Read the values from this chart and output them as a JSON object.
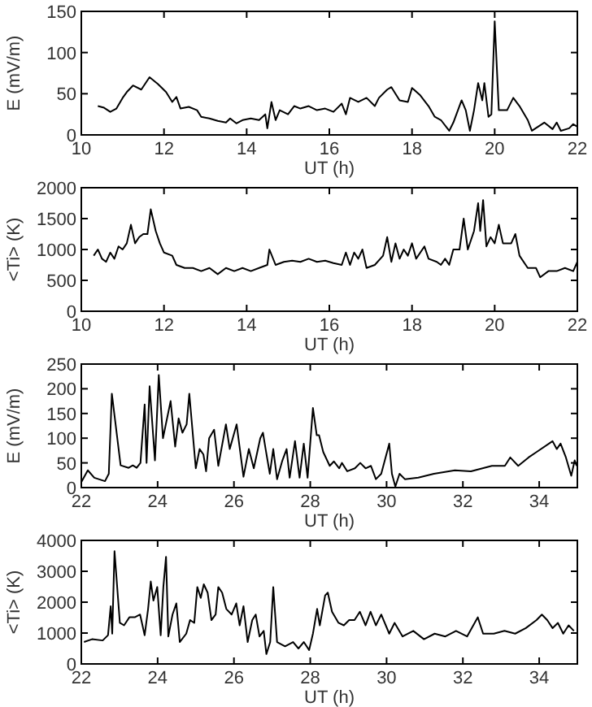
{
  "chart_data": [
    {
      "type": "line",
      "xlabel": "UT (h)",
      "ylabel": "E (mV/m)",
      "xlim": [
        10,
        22
      ],
      "ylim": [
        0,
        150
      ],
      "xticks": [
        10,
        12,
        14,
        16,
        18,
        20,
        22
      ],
      "yticks": [
        0,
        50,
        100,
        150
      ],
      "color": "#000000",
      "x": [
        10.4,
        10.55,
        10.7,
        10.85,
        11.0,
        11.1,
        11.25,
        11.45,
        11.65,
        11.85,
        12.05,
        12.2,
        12.3,
        12.4,
        12.6,
        12.8,
        12.9,
        13.1,
        13.3,
        13.5,
        13.6,
        13.75,
        13.9,
        14.1,
        14.3,
        14.45,
        14.5,
        14.6,
        14.7,
        14.8,
        15.0,
        15.15,
        15.3,
        15.5,
        15.7,
        15.9,
        16.1,
        16.3,
        16.4,
        16.5,
        16.7,
        16.9,
        17.1,
        17.2,
        17.4,
        17.5,
        17.7,
        17.9,
        18.0,
        18.2,
        18.4,
        18.55,
        18.7,
        18.9,
        19.0,
        19.2,
        19.3,
        19.4,
        19.5,
        19.6,
        19.7,
        19.75,
        19.85,
        19.92,
        20.0,
        20.1,
        20.3,
        20.45,
        20.6,
        20.8,
        20.9,
        21.2,
        21.4,
        21.5,
        21.6,
        21.8,
        21.9,
        22.0
      ],
      "values": [
        35,
        33,
        28,
        32,
        45,
        52,
        60,
        55,
        70,
        62,
        52,
        40,
        46,
        32,
        34,
        30,
        22,
        20,
        17,
        15,
        20,
        14,
        18,
        20,
        18,
        25,
        8,
        40,
        18,
        30,
        25,
        35,
        32,
        35,
        30,
        32,
        28,
        38,
        25,
        45,
        40,
        45,
        35,
        45,
        55,
        58,
        42,
        40,
        57,
        48,
        35,
        22,
        18,
        5,
        15,
        42,
        30,
        5,
        30,
        63,
        42,
        63,
        22,
        25,
        138,
        30,
        30,
        45,
        35,
        18,
        5,
        15,
        7,
        15,
        5,
        8,
        13,
        10
      ]
    },
    {
      "type": "line",
      "xlabel": "UT (h)",
      "ylabel": "<Ti> (K)",
      "xlim": [
        10,
        22
      ],
      "ylim": [
        0,
        2000
      ],
      "xticks": [
        10,
        12,
        14,
        16,
        18,
        20,
        22
      ],
      "yticks": [
        0,
        500,
        1000,
        1500,
        2000
      ],
      "color": "#000000",
      "x": [
        10.3,
        10.4,
        10.5,
        10.6,
        10.7,
        10.8,
        10.9,
        11.0,
        11.1,
        11.2,
        11.3,
        11.4,
        11.5,
        11.6,
        11.68,
        11.8,
        11.9,
        12.0,
        12.2,
        12.3,
        12.5,
        12.7,
        12.9,
        13.1,
        13.3,
        13.5,
        13.7,
        13.9,
        14.1,
        14.3,
        14.5,
        14.55,
        14.7,
        14.9,
        15.1,
        15.3,
        15.5,
        15.7,
        15.9,
        16.1,
        16.3,
        16.4,
        16.5,
        16.6,
        16.7,
        16.8,
        16.9,
        17.1,
        17.3,
        17.4,
        17.5,
        17.6,
        17.7,
        17.8,
        17.9,
        18.0,
        18.1,
        18.3,
        18.4,
        18.6,
        18.7,
        18.8,
        18.9,
        19.0,
        19.15,
        19.25,
        19.35,
        19.5,
        19.6,
        19.65,
        19.72,
        19.8,
        19.9,
        20.0,
        20.1,
        20.2,
        20.4,
        20.5,
        20.6,
        20.8,
        21.0,
        21.1,
        21.3,
        21.5,
        21.7,
        21.9,
        22.0
      ],
      "values": [
        900,
        1000,
        850,
        800,
        950,
        850,
        1050,
        1000,
        1100,
        1400,
        1100,
        1200,
        1250,
        1250,
        1650,
        1300,
        1100,
        950,
        900,
        750,
        700,
        700,
        650,
        700,
        600,
        700,
        650,
        700,
        650,
        700,
        750,
        1000,
        750,
        800,
        820,
        800,
        850,
        800,
        820,
        780,
        750,
        950,
        750,
        950,
        850,
        1000,
        700,
        750,
        900,
        1200,
        800,
        1100,
        850,
        1000,
        900,
        1100,
        850,
        1050,
        850,
        800,
        750,
        850,
        750,
        1000,
        1000,
        1500,
        1000,
        1300,
        1750,
        1300,
        1800,
        1050,
        1200,
        1100,
        1400,
        1100,
        1100,
        1250,
        900,
        700,
        700,
        550,
        650,
        650,
        700,
        650,
        800
      ]
    },
    {
      "type": "line",
      "xlabel": "UT (h)",
      "ylabel": "E (mV/m)",
      "xlim": [
        22,
        35
      ],
      "ylim": [
        0,
        250
      ],
      "xticks": [
        22,
        24,
        26,
        28,
        30,
        32,
        34
      ],
      "yticks": [
        0,
        50,
        100,
        150,
        200,
        250
      ],
      "color": "#000000",
      "x": [
        22.0,
        22.17,
        22.34,
        22.62,
        22.72,
        22.8,
        23.03,
        23.24,
        23.35,
        23.45,
        23.55,
        23.66,
        23.71,
        23.79,
        23.93,
        24.03,
        24.14,
        24.34,
        24.46,
        24.55,
        24.65,
        24.76,
        24.83,
        25.0,
        25.1,
        25.2,
        25.27,
        25.35,
        25.48,
        25.59,
        25.79,
        25.89,
        26.07,
        26.25,
        26.39,
        26.52,
        26.69,
        26.76,
        26.83,
        26.94,
        27.03,
        27.13,
        27.27,
        27.38,
        27.46,
        27.6,
        27.72,
        27.83,
        27.93,
        28.07,
        28.17,
        28.23,
        28.34,
        28.51,
        28.62,
        28.76,
        28.83,
        28.97,
        29.17,
        29.31,
        29.45,
        29.59,
        29.72,
        29.86,
        30.07,
        30.14,
        30.23,
        30.34,
        30.48,
        30.83,
        31.24,
        31.79,
        32.21,
        32.76,
        33.1,
        33.24,
        33.45,
        33.72,
        33.93,
        34.35,
        34.46,
        34.56,
        34.7,
        34.84,
        34.93,
        34.98
      ],
      "values": [
        11,
        35,
        20,
        13,
        28,
        190,
        45,
        40,
        45,
        40,
        50,
        168,
        50,
        205,
        55,
        228,
        100,
        175,
        83,
        140,
        111,
        128,
        190,
        39,
        78,
        67,
        33,
        100,
        117,
        44,
        128,
        78,
        128,
        22,
        78,
        39,
        100,
        111,
        78,
        28,
        78,
        17,
        55,
        78,
        20,
        94,
        20,
        89,
        20,
        161,
        106,
        106,
        72,
        44,
        53,
        39,
        50,
        33,
        39,
        50,
        39,
        44,
        17,
        28,
        89,
        28,
        2,
        28,
        17,
        20,
        28,
        35,
        33,
        44,
        44,
        61,
        44,
        61,
        72,
        94,
        78,
        89,
        61,
        24,
        55,
        44
      ]
    },
    {
      "type": "line",
      "xlabel": "UT (h)",
      "ylabel": "<Ti> (K)",
      "xlim": [
        22,
        35
      ],
      "ylim": [
        0,
        4000
      ],
      "xticks": [
        22,
        24,
        26,
        28,
        30,
        32,
        34
      ],
      "yticks": [
        0,
        1000,
        2000,
        3000,
        4000
      ],
      "color": "#000000",
      "x": [
        22.07,
        22.28,
        22.56,
        22.7,
        22.77,
        22.81,
        22.87,
        23.01,
        23.12,
        23.26,
        23.4,
        23.54,
        23.66,
        23.75,
        23.82,
        23.89,
        23.99,
        24.08,
        24.15,
        24.22,
        24.28,
        24.39,
        24.49,
        24.58,
        24.75,
        24.85,
        24.96,
        25.04,
        25.13,
        25.21,
        25.31,
        25.41,
        25.52,
        25.59,
        25.69,
        25.8,
        25.94,
        26.06,
        26.15,
        26.25,
        26.36,
        26.48,
        26.57,
        26.67,
        26.78,
        26.85,
        26.95,
        27.03,
        27.13,
        27.34,
        27.55,
        27.69,
        27.83,
        27.97,
        28.07,
        28.18,
        28.25,
        28.39,
        28.46,
        28.57,
        28.74,
        28.88,
        29.02,
        29.16,
        29.3,
        29.45,
        29.58,
        29.72,
        29.86,
        30.07,
        30.21,
        30.42,
        30.7,
        30.98,
        31.26,
        31.54,
        31.82,
        32.11,
        32.39,
        32.53,
        32.81,
        33.09,
        33.37,
        33.65,
        33.93,
        34.07,
        34.21,
        34.35,
        34.49,
        34.63,
        34.77,
        34.91
      ],
      "values": [
        710,
        800,
        760,
        930,
        1870,
        980,
        3650,
        1330,
        1250,
        1510,
        1510,
        1600,
        930,
        1780,
        2670,
        2050,
        2490,
        930,
        2490,
        3470,
        890,
        1600,
        1960,
        710,
        980,
        1420,
        1330,
        2490,
        2140,
        2580,
        2310,
        1420,
        1600,
        2490,
        2310,
        1780,
        1600,
        1960,
        1250,
        1870,
        710,
        1420,
        1600,
        890,
        1070,
        320,
        710,
        2490,
        710,
        570,
        710,
        500,
        710,
        450,
        980,
        1780,
        1250,
        2220,
        2310,
        1690,
        1330,
        1250,
        1420,
        1420,
        1690,
        1250,
        1690,
        1250,
        1600,
        980,
        1330,
        890,
        1070,
        800,
        980,
        890,
        1070,
        890,
        1510,
        980,
        980,
        1070,
        980,
        1160,
        1420,
        1600,
        1420,
        1160,
        1330,
        980,
        1250,
        1070
      ]
    }
  ]
}
